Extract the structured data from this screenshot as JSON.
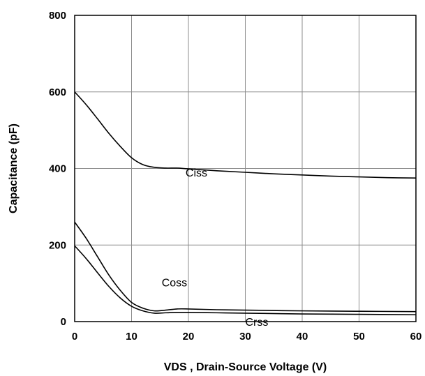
{
  "chart_data": {
    "type": "line",
    "title": "",
    "xlabel": "VDS , Drain-Source Voltage (V)",
    "ylabel": "Capacitance (pF)",
    "xlim": [
      0,
      60
    ],
    "ylim": [
      0,
      800
    ],
    "x_ticks": [
      0,
      10,
      20,
      30,
      40,
      50,
      60
    ],
    "y_ticks": [
      0,
      200,
      400,
      600,
      800
    ],
    "grid": true,
    "legend": "none",
    "series": [
      {
        "name": "Ciss",
        "color": "#000000",
        "x": [
          0,
          2,
          4,
          6,
          8,
          10,
          12,
          14,
          16,
          18,
          20,
          25,
          30,
          35,
          40,
          45,
          50,
          55,
          60
        ],
        "y": [
          600,
          567,
          530,
          492,
          458,
          428,
          410,
          403,
          401,
          401,
          399,
          394,
          390,
          386,
          383,
          380,
          378,
          376,
          375
        ]
      },
      {
        "name": "Coss",
        "color": "#000000",
        "x": [
          0,
          2,
          4,
          6,
          8,
          10,
          12,
          14,
          16,
          18,
          20,
          25,
          30,
          40,
          50,
          60
        ],
        "y": [
          260,
          218,
          170,
          122,
          82,
          50,
          35,
          28,
          30,
          33,
          33,
          31,
          30,
          28,
          27,
          26
        ]
      },
      {
        "name": "Crss",
        "color": "#000000",
        "x": [
          0,
          2,
          4,
          6,
          8,
          10,
          12,
          14,
          16,
          18,
          20,
          25,
          30,
          40,
          50,
          60
        ],
        "y": [
          198,
          165,
          128,
          92,
          62,
          40,
          28,
          22,
          23,
          24,
          24,
          23,
          22,
          20,
          19,
          18
        ]
      }
    ],
    "annotations": [
      {
        "text": "Ciss",
        "x": 19.5,
        "y": 390
      },
      {
        "text": "Coss",
        "x": 15.3,
        "y": 103
      },
      {
        "text": "Crss",
        "x": 30,
        "y": 0
      }
    ]
  }
}
